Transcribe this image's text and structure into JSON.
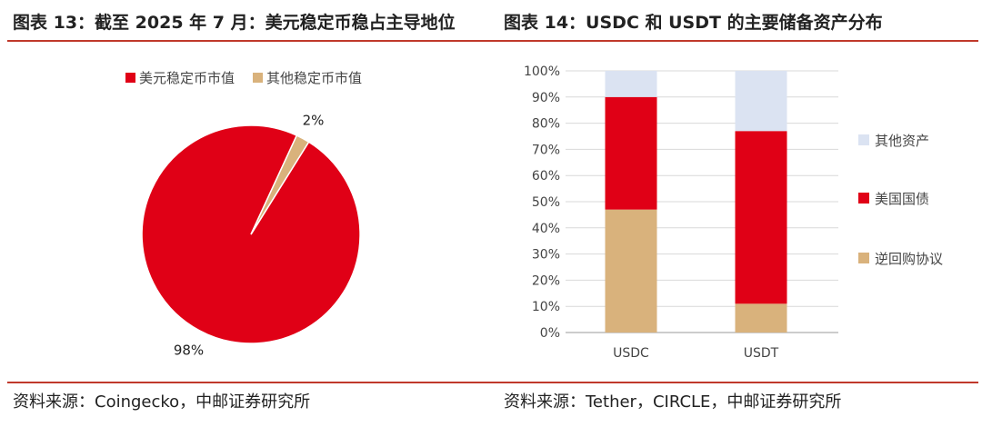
{
  "left_title": "图表 13：截至 2025 年 7 月：美元稳定币稳占主导地位",
  "right_title": "图表 14：USDC 和 USDT 的主要储备资产分布",
  "left_source": "资料来源：Coingecko，中邮证券研究所",
  "right_source": "资料来源：Tether，CIRCLE，中邮证券研究所",
  "colors": {
    "accent_rule": "#c0392b",
    "red": "#e00016",
    "tan": "#d9b27c",
    "light_blue": "#dbe3f2"
  },
  "chart_data": [
    {
      "type": "pie",
      "title": "",
      "legend_position": "top",
      "slices": [
        {
          "name": "美元稳定币市值",
          "value": 98,
          "label": "98%",
          "color": "#e00016"
        },
        {
          "name": "其他稳定币市值",
          "value": 2,
          "label": "2%",
          "color": "#d9b27c"
        }
      ]
    },
    {
      "type": "bar",
      "stacked": true,
      "title": "",
      "xlabel": "",
      "ylabel": "",
      "categories": [
        "USDC",
        "USDT"
      ],
      "ylim": [
        0,
        100
      ],
      "yticks": [
        0,
        10,
        20,
        30,
        40,
        50,
        60,
        70,
        80,
        90,
        100
      ],
      "ytick_labels": [
        "0%",
        "10%",
        "20%",
        "30%",
        "40%",
        "50%",
        "60%",
        "70%",
        "80%",
        "90%",
        "100%"
      ],
      "grid": true,
      "legend_position": "right",
      "series": [
        {
          "name": "逆回购协议",
          "values": [
            47,
            11
          ],
          "color": "#d9b27c"
        },
        {
          "name": "美国国债",
          "values": [
            43,
            66
          ],
          "color": "#e00016"
        },
        {
          "name": "其他资产",
          "values": [
            10,
            23
          ],
          "color": "#dbe3f2"
        }
      ],
      "legend_order": [
        "其他资产",
        "美国国债",
        "逆回购协议"
      ]
    }
  ]
}
